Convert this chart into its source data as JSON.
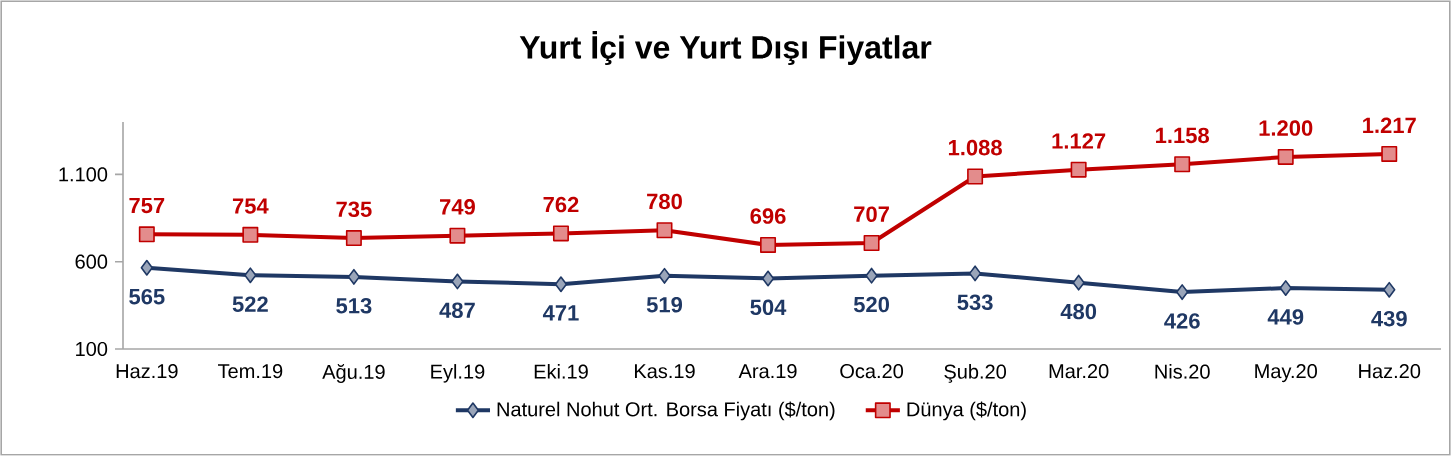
{
  "chart_data": {
    "type": "line",
    "title": "Yurt İçi ve Yurt Dışı Fiyatlar",
    "categories": [
      "Haz.19",
      "Tem.19",
      "Ağu.19",
      "Eyl.19",
      "Eki.19",
      "Kas.19",
      "Ara.19",
      "Oca.20",
      "Şub.20",
      "Mar.20",
      "Nis.20",
      "May.20",
      "Haz.20"
    ],
    "series": [
      {
        "name": "Naturel Nohut Ort. Borsa Fiyatı ($/ton)",
        "color": "#1f3864",
        "marker": "diamond",
        "values": [
          565,
          522,
          513,
          487,
          471,
          519,
          504,
          520,
          533,
          480,
          426,
          449,
          439
        ],
        "value_labels": [
          "565",
          "522",
          "513",
          "487",
          "471",
          "519",
          "504",
          "520",
          "533",
          "480",
          "426",
          "449",
          "439"
        ]
      },
      {
        "name": "Dünya ($/ton)",
        "color": "#c00000",
        "marker": "square",
        "values": [
          757,
          754,
          735,
          749,
          762,
          780,
          696,
          707,
          1088,
          1127,
          1158,
          1200,
          1217
        ],
        "value_labels": [
          "757",
          "754",
          "735",
          "749",
          "762",
          "780",
          "696",
          "707",
          "1.088",
          "1.127",
          "1.158",
          "1.200",
          "1.217"
        ]
      }
    ],
    "ylim": [
      100,
      1400
    ],
    "yticks": [
      100,
      600,
      {
        "value": 1100,
        "label": "1.100"
      }
    ],
    "legend": "bottom",
    "line_style": "solid"
  }
}
